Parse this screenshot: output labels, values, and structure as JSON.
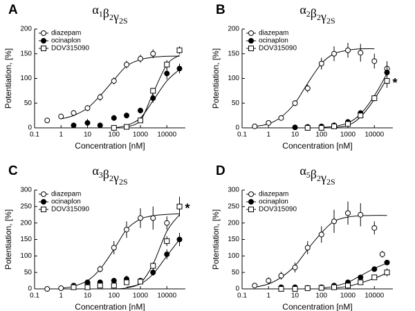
{
  "chart_data": [
    {
      "type": "scatter",
      "label": "A",
      "title": [
        [
          "α",
          "1"
        ],
        [
          "β",
          "2"
        ],
        [
          "γ",
          "2S"
        ]
      ],
      "x_label": "Concentration [nM]",
      "y_label": "Potentiation, [%]",
      "xscale": "log",
      "xlim": [
        0.1,
        50000
      ],
      "xticks": [
        0.1,
        1,
        10,
        100,
        1000,
        10000
      ],
      "ylim": [
        0,
        200
      ],
      "yticks": [
        0,
        50,
        100,
        150,
        200
      ],
      "legend": "upper left",
      "series": [
        {
          "name": "diazepam",
          "marker": "circle-open",
          "color": "#000000",
          "x": [
            0.3,
            1,
            3,
            10,
            30,
            100,
            300,
            1000,
            3000
          ],
          "values": [
            15,
            23,
            30,
            40,
            62,
            95,
            128,
            140,
            150
          ],
          "errors": [
            4,
            5,
            6,
            6,
            7,
            7,
            8,
            8,
            9
          ],
          "fit": {
            "x": [
              1,
              3,
              10,
              30,
              100,
              300,
              1000,
              3000,
              10000,
              30000
            ],
            "values": [
              18,
              25,
              40,
              65,
              97,
              125,
              138,
              143,
              145,
              145
            ]
          }
        },
        {
          "name": "ocinaplon",
          "marker": "circle-filled",
          "color": "#000000",
          "x": [
            3,
            10,
            30,
            100,
            300,
            1000,
            3000,
            10000,
            30000
          ],
          "values": [
            5,
            10,
            5,
            20,
            25,
            35,
            60,
            110,
            120
          ],
          "errors": [
            3,
            8,
            3,
            6,
            6,
            6,
            9,
            12,
            10
          ],
          "fit": {
            "x": [
              100,
              300,
              1000,
              3000,
              10000,
              30000
            ],
            "values": [
              0,
              5,
              20,
              55,
              95,
              118
            ]
          }
        },
        {
          "name": "DOV315090",
          "marker": "square-open",
          "color": "#000000",
          "x": [
            100,
            300,
            1000,
            3000,
            10000,
            30000
          ],
          "values": [
            0,
            2,
            15,
            75,
            128,
            157
          ],
          "errors": [
            2,
            2,
            4,
            6,
            9,
            8
          ],
          "fit": {
            "x": [
              300,
              1000,
              3000,
              10000,
              30000
            ],
            "values": [
              2,
              15,
              70,
              128,
              147
            ]
          }
        }
      ]
    },
    {
      "type": "scatter",
      "label": "B",
      "title": [
        [
          "α",
          "2"
        ],
        [
          "β",
          "2"
        ],
        [
          "γ",
          "2S"
        ]
      ],
      "x_label": "Concentration [nM]",
      "y_label": "Potentiation, [%]",
      "xscale": "log",
      "xlim": [
        0.1,
        50000
      ],
      "xticks": [
        0.1,
        1,
        10,
        100,
        1000,
        10000
      ],
      "ylim": [
        0,
        200
      ],
      "yticks": [
        0,
        50,
        100,
        150,
        200
      ],
      "legend": "upper left",
      "annotation": "*",
      "series": [
        {
          "name": "diazepam",
          "marker": "circle-open",
          "color": "#000000",
          "x": [
            0.3,
            1,
            3,
            10,
            30,
            100,
            300,
            1000,
            3000,
            10000,
            30000
          ],
          "values": [
            3,
            10,
            20,
            50,
            80,
            130,
            150,
            157,
            152,
            135,
            120
          ],
          "errors": [
            2,
            3,
            4,
            6,
            8,
            12,
            15,
            15,
            18,
            15,
            15
          ],
          "fit": {
            "x": [
              0.3,
              1,
              3,
              10,
              30,
              100,
              300,
              1000,
              3000,
              10000
            ],
            "values": [
              3,
              8,
              22,
              50,
              90,
              130,
              150,
              157,
              160,
              160
            ]
          }
        },
        {
          "name": "ocinaplon",
          "marker": "circle-filled",
          "color": "#000000",
          "x": [
            10,
            30,
            100,
            300,
            1000,
            3000,
            10000,
            30000
          ],
          "values": [
            1,
            2,
            3,
            5,
            12,
            30,
            60,
            112
          ],
          "errors": [
            1,
            1,
            2,
            2,
            3,
            4,
            6,
            12
          ],
          "fit": {
            "x": [
              100,
              300,
              1000,
              3000,
              10000,
              30000
            ],
            "values": [
              1,
              3,
              10,
              28,
              65,
              110
            ]
          }
        },
        {
          "name": "DOV315090",
          "marker": "square-open",
          "color": "#000000",
          "x": [
            30,
            100,
            300,
            1000,
            3000,
            10000,
            30000
          ],
          "values": [
            0,
            0,
            3,
            8,
            25,
            60,
            95
          ],
          "errors": [
            1,
            1,
            2,
            3,
            4,
            6,
            14
          ],
          "fit": {
            "x": [
              300,
              1000,
              3000,
              10000,
              30000
            ],
            "values": [
              1,
              5,
              22,
              58,
              100
            ]
          }
        }
      ]
    },
    {
      "type": "scatter",
      "label": "C",
      "title": [
        [
          "α",
          "3"
        ],
        [
          "β",
          "2"
        ],
        [
          "γ",
          "2S"
        ]
      ],
      "x_label": "Concentration [nM]",
      "y_label": "Potentiation, [%]",
      "xscale": "log",
      "xlim": [
        0.1,
        50000
      ],
      "xticks": [
        0.1,
        1,
        10,
        100,
        1000,
        10000
      ],
      "ylim": [
        0,
        300
      ],
      "yticks": [
        0,
        50,
        100,
        150,
        200,
        250,
        300
      ],
      "legend": "upper left",
      "annotation": "*",
      "series": [
        {
          "name": "diazepam",
          "marker": "circle-open",
          "color": "#000000",
          "x": [
            0.3,
            1,
            3,
            10,
            30,
            100,
            300,
            1000,
            3000,
            10000
          ],
          "values": [
            0,
            2,
            5,
            15,
            60,
            125,
            180,
            215,
            215,
            200
          ],
          "errors": [
            2,
            2,
            3,
            5,
            10,
            20,
            25,
            30,
            35,
            20
          ],
          "fit": {
            "x": [
              1,
              3,
              10,
              30,
              100,
              300,
              1000,
              3000,
              10000,
              30000
            ],
            "values": [
              2,
              8,
              25,
              60,
              120,
              180,
              212,
              222,
              226,
              228
            ]
          }
        },
        {
          "name": "ocinaplon",
          "marker": "circle-filled",
          "color": "#000000",
          "x": [
            3,
            10,
            30,
            100,
            300,
            1000,
            3000,
            10000,
            30000
          ],
          "values": [
            10,
            20,
            20,
            25,
            30,
            25,
            50,
            105,
            150
          ],
          "errors": [
            5,
            8,
            5,
            8,
            10,
            8,
            10,
            15,
            20
          ],
          "fit": {
            "x": [
              300,
              1000,
              3000,
              10000,
              30000
            ],
            "values": [
              5,
              15,
              45,
              100,
              150
            ]
          }
        },
        {
          "name": "DOV315090",
          "marker": "square-open",
          "color": "#000000",
          "x": [
            3,
            10,
            30,
            100,
            300,
            1000,
            3000,
            10000,
            30000
          ],
          "values": [
            5,
            5,
            10,
            10,
            20,
            22,
            70,
            145,
            250
          ],
          "errors": [
            2,
            2,
            3,
            3,
            6,
            6,
            10,
            15,
            30
          ],
          "fit": {
            "x": [
              100,
              300,
              1000,
              3000,
              10000,
              30000
            ],
            "values": [
              0,
              3,
              18,
              75,
              175,
              225
            ]
          }
        }
      ]
    },
    {
      "type": "scatter",
      "label": "D",
      "title": [
        [
          "α",
          "5"
        ],
        [
          "β",
          "2"
        ],
        [
          "γ",
          "2S"
        ]
      ],
      "x_label": "Concentration [nM]",
      "y_label": "Potentiation, [%]",
      "xscale": "log",
      "xlim": [
        0.1,
        50000
      ],
      "xticks": [
        0.1,
        1,
        10,
        100,
        1000,
        10000
      ],
      "ylim": [
        0,
        300
      ],
      "yticks": [
        0,
        50,
        100,
        150,
        200,
        250,
        300
      ],
      "legend": "upper left",
      "series": [
        {
          "name": "diazepam",
          "marker": "circle-open",
          "color": "#000000",
          "x": [
            0.3,
            1,
            3,
            10,
            30,
            100,
            300,
            1000,
            3000,
            10000,
            20000
          ],
          "values": [
            10,
            25,
            40,
            65,
            125,
            165,
            205,
            230,
            225,
            185,
            105
          ],
          "errors": [
            4,
            10,
            12,
            15,
            20,
            25,
            35,
            35,
            35,
            20,
            10
          ],
          "fit": {
            "x": [
              0.3,
              1,
              3,
              10,
              30,
              100,
              300,
              1000,
              3000,
              10000,
              30000
            ],
            "values": [
              5,
              15,
              35,
              70,
              120,
              170,
              205,
              218,
              222,
              223,
              223
            ]
          }
        },
        {
          "name": "ocinaplon",
          "marker": "circle-filled",
          "color": "#000000",
          "x": [
            3,
            10,
            30,
            100,
            300,
            1000,
            3000,
            10000,
            30000
          ],
          "values": [
            5,
            5,
            3,
            5,
            10,
            20,
            35,
            60,
            80
          ],
          "errors": [
            2,
            2,
            2,
            2,
            3,
            4,
            5,
            6,
            6
          ],
          "fit": {
            "x": [
              100,
              300,
              1000,
              3000,
              10000,
              30000
            ],
            "values": [
              2,
              8,
              20,
              40,
              62,
              78
            ]
          }
        },
        {
          "name": "DOV315090",
          "marker": "square-open",
          "color": "#000000",
          "x": [
            3,
            10,
            30,
            100,
            300,
            1000,
            3000,
            10000,
            30000
          ],
          "values": [
            0,
            0,
            2,
            3,
            5,
            10,
            20,
            35,
            50
          ],
          "errors": [
            1,
            1,
            1,
            2,
            2,
            3,
            5,
            8,
            12
          ],
          "fit": {
            "x": [
              300,
              1000,
              3000,
              10000,
              30000
            ],
            "values": [
              2,
              8,
              18,
              32,
              48
            ]
          }
        }
      ]
    }
  ]
}
